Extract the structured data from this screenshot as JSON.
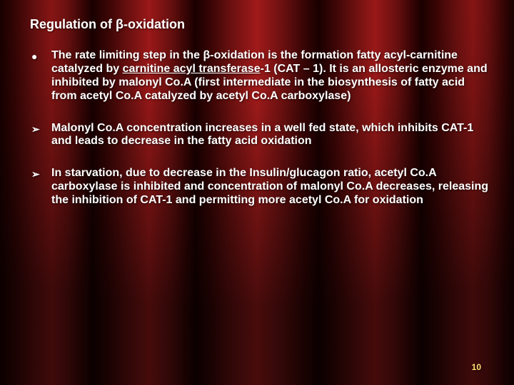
{
  "title": "Regulation of β-oxidation",
  "bullets": [
    {
      "marker": "●",
      "html": "The rate limiting step in the β-oxidation is the formation fatty acyl-carnitine catalyzed by <span class=\"underline\">carnitine acyl transferase</span>-1 (CAT – 1). It is an allosteric enzyme and  inhibited by malonyl Co.A (first intermediate in the biosynthesis of fatty acid from acetyl Co.A catalyzed by acetyl Co.A carboxylase)"
    },
    {
      "marker": "➢",
      "html": "Malonyl Co.A concentration increases in a well fed state, which inhibits CAT-1 and leads to decrease in the fatty acid oxidation"
    },
    {
      "marker": "➢",
      "html": "In starvation, due to decrease in the Insulin/glucagon ratio, acetyl Co.A carboxylase  is inhibited and concentration of malonyl Co.A decreases, releasing the inhibition of CAT-1 and permitting more acetyl Co.A for oxidation"
    }
  ],
  "page_number": "10",
  "colors": {
    "text": "#ffffff",
    "page_number": "#ffe070"
  }
}
